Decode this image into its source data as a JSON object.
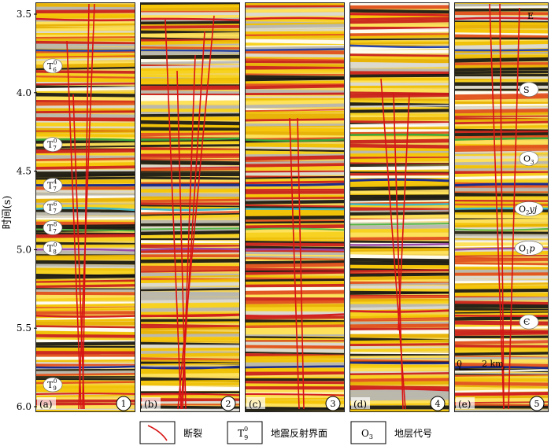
{
  "y_axis": {
    "title": "时间(s)",
    "ticks": [
      "3.5",
      "4.0",
      "4.5",
      "5.0",
      "5.5",
      "6.0"
    ],
    "tick_values": [
      3.5,
      4.0,
      4.5,
      5.0,
      5.5,
      6.0
    ],
    "range": [
      3.45,
      6.0
    ]
  },
  "panels": [
    {
      "letter": "(a)",
      "number": "1"
    },
    {
      "letter": "(b)",
      "number": "2"
    },
    {
      "letter": "(c)",
      "number": "3"
    },
    {
      "letter": "(d)",
      "number": "4"
    },
    {
      "letter": "(e)",
      "number": "5"
    }
  ],
  "horizon_labels_a": [
    {
      "base": "T",
      "sup": "0",
      "sub": "6",
      "t": 3.83
    },
    {
      "base": "T",
      "sup": "0",
      "sub": "7",
      "t": 4.33
    },
    {
      "base": "T",
      "sup": "4",
      "sub": "7",
      "t": 4.59
    },
    {
      "base": "T",
      "sup": "6",
      "sub": "7",
      "t": 4.73
    },
    {
      "base": "T",
      "sup": "8",
      "sub": "7",
      "t": 4.86
    },
    {
      "base": "T",
      "sup": "0",
      "sub": "8",
      "t": 4.99
    },
    {
      "base": "T",
      "sup": "0",
      "sub": "9",
      "t": 5.86
    }
  ],
  "stratum_labels_e": [
    {
      "base": "E",
      "sub": "",
      "t": 3.52
    },
    {
      "base": "S",
      "sub": "",
      "t": 3.98
    },
    {
      "base": "O",
      "sub": "3",
      "t": 4.42
    },
    {
      "base": "O",
      "sub": "2",
      "italic": "yj",
      "t": 4.74
    },
    {
      "base": "O",
      "sub": "1",
      "italic": "p",
      "t": 4.99
    },
    {
      "base": "Є",
      "sub": "",
      "t": 5.46
    }
  ],
  "scale_bar": {
    "start": "0",
    "label": "2 km"
  },
  "legend": [
    {
      "symbol": "fault-line",
      "label": "断裂"
    },
    {
      "symbol": "horizon",
      "base": "T",
      "sup": "0",
      "sub": "9",
      "label": "地震反射界面"
    },
    {
      "symbol": "stratum",
      "base": "O",
      "sub": "3",
      "label": "地层代号"
    }
  ]
}
